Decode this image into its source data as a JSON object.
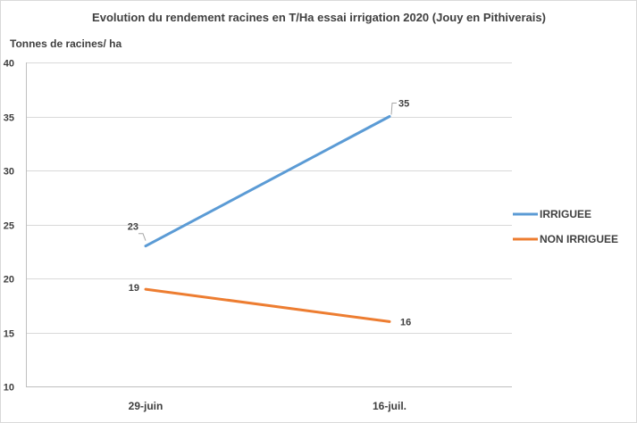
{
  "chart_data": {
    "type": "line",
    "title": "Evolution du rendement racines en T/Ha essai irrigation 2020 (Jouy en Pithiverais)",
    "ylabel": "Tonnes de racines/ ha",
    "xlabel": "",
    "categories": [
      "29-juin",
      "16-juil."
    ],
    "ylim": [
      10,
      40
    ],
    "yticks": [
      10,
      15,
      20,
      25,
      30,
      35,
      40
    ],
    "grid": true,
    "legend_position": "right",
    "series": [
      {
        "name": "IRRIGUEE",
        "values": [
          23,
          35
        ],
        "color": "#5b9bd5"
      },
      {
        "name": "NON IRRIGUEE",
        "values": [
          19,
          16
        ],
        "color": "#ed7d31"
      }
    ]
  }
}
